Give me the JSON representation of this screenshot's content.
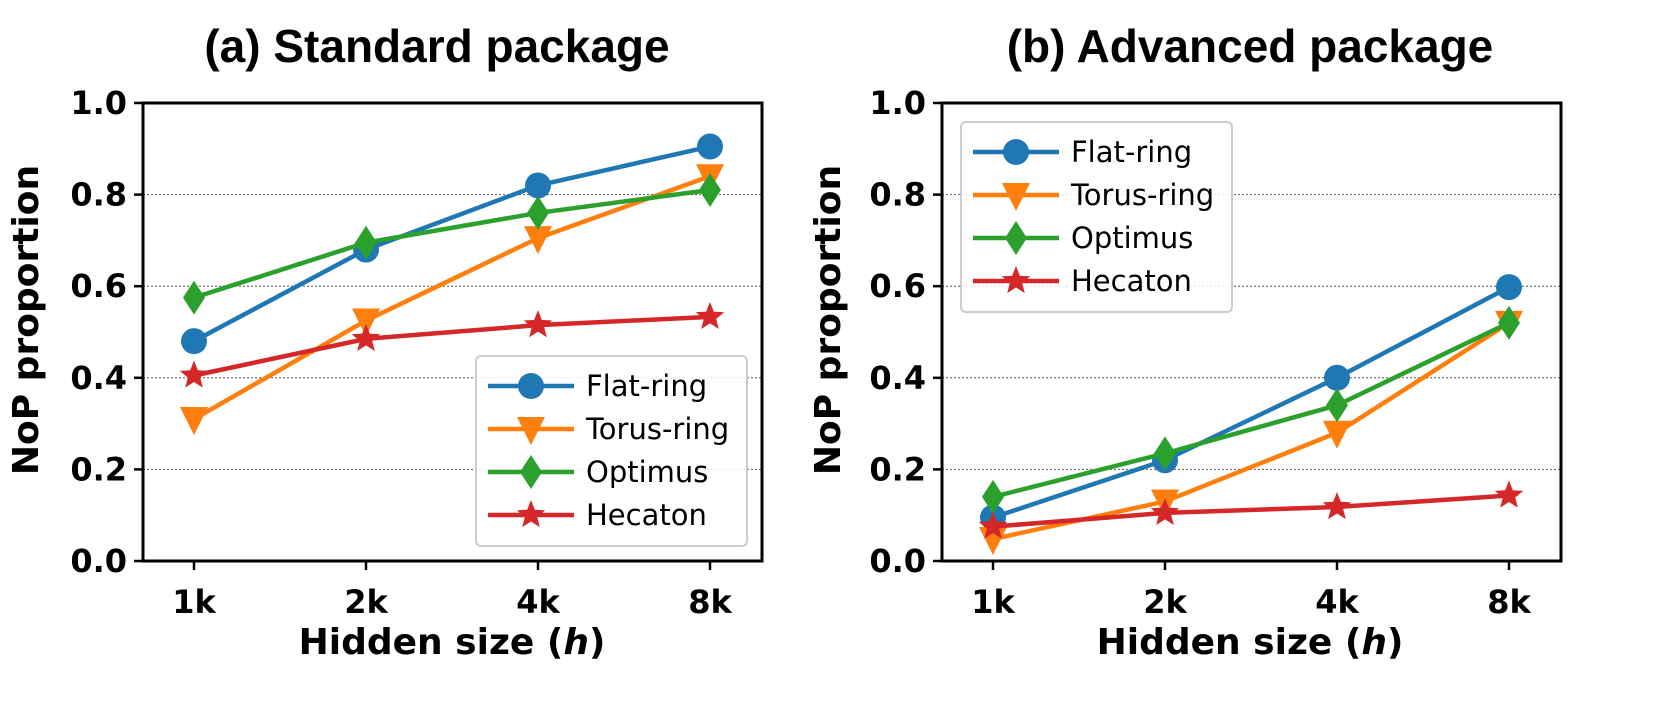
{
  "chart_data": [
    {
      "type": "line",
      "title": "(a) Standard package",
      "xlabel_prefix": "Hidden size (",
      "xlabel_var": "h",
      "xlabel_suffix": ")",
      "ylabel": "NoP proportion",
      "categories": [
        "1k",
        "2k",
        "4k",
        "8k"
      ],
      "ylim": [
        0,
        1
      ],
      "yticks": [
        "0.0",
        "0.2",
        "0.4",
        "0.6",
        "0.8",
        "1.0"
      ],
      "grid": "horizontal dotted",
      "legend_position": "lower-right",
      "series": [
        {
          "name": "Flat-ring",
          "marker": "circle",
          "color": "#1f77b4",
          "values": [
            0.48,
            0.68,
            0.82,
            0.905
          ]
        },
        {
          "name": "Torus-ring",
          "marker": "triangle-down",
          "color": "#ff7f0e",
          "values": [
            0.31,
            0.525,
            0.705,
            0.84
          ]
        },
        {
          "name": "Optimus",
          "marker": "diamond",
          "color": "#2ca02c",
          "values": [
            0.575,
            0.695,
            0.76,
            0.81
          ]
        },
        {
          "name": "Hecaton",
          "marker": "star",
          "color": "#d62728",
          "values": [
            0.405,
            0.485,
            0.515,
            0.533
          ]
        }
      ]
    },
    {
      "type": "line",
      "title": "(b) Advanced package",
      "xlabel_prefix": "Hidden size (",
      "xlabel_var": "h",
      "xlabel_suffix": ")",
      "ylabel": "NoP proportion",
      "categories": [
        "1k",
        "2k",
        "4k",
        "8k"
      ],
      "ylim": [
        0,
        1
      ],
      "yticks": [
        "0.0",
        "0.2",
        "0.4",
        "0.6",
        "0.8",
        "1.0"
      ],
      "grid": "horizontal dotted",
      "legend_position": "upper-left",
      "series": [
        {
          "name": "Flat-ring",
          "marker": "circle",
          "color": "#1f77b4",
          "values": [
            0.095,
            0.22,
            0.4,
            0.598
          ]
        },
        {
          "name": "Torus-ring",
          "marker": "triangle-down",
          "color": "#ff7f0e",
          "values": [
            0.048,
            0.13,
            0.28,
            0.52
          ]
        },
        {
          "name": "Optimus",
          "marker": "diamond",
          "color": "#2ca02c",
          "values": [
            0.14,
            0.235,
            0.34,
            0.52
          ]
        },
        {
          "name": "Hecaton",
          "marker": "star",
          "color": "#d62728",
          "values": [
            0.075,
            0.105,
            0.118,
            0.143
          ]
        }
      ]
    }
  ]
}
